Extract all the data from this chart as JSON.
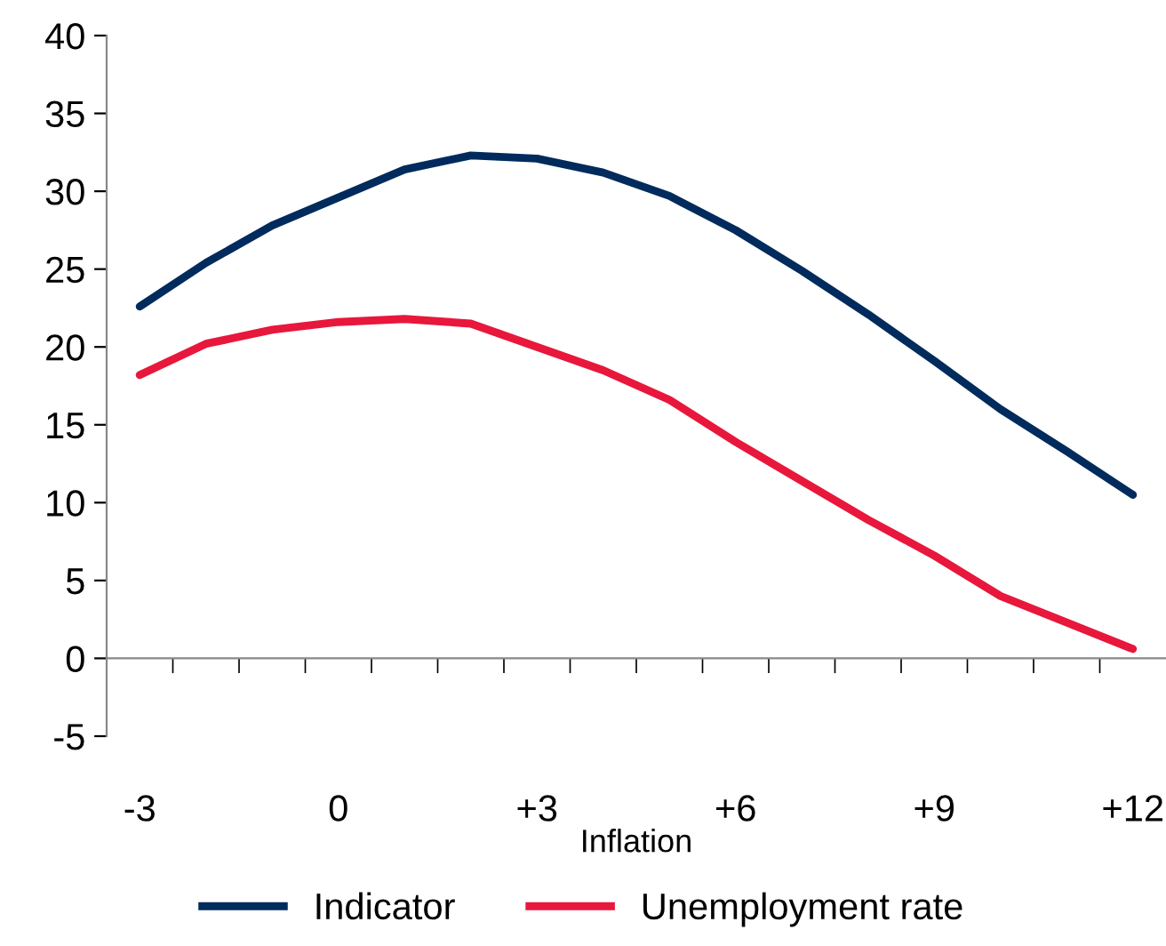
{
  "chart_data": {
    "type": "line",
    "xlabel": "Inflation",
    "categories": [
      "-3",
      null,
      null,
      "0",
      null,
      null,
      "+3",
      null,
      null,
      "+6",
      null,
      null,
      "+9",
      null,
      null,
      "+12"
    ],
    "series": [
      {
        "name": "Indicator",
        "color": "#002b5c",
        "values": [
          22.6,
          25.4,
          27.8,
          29.6,
          31.4,
          32.3,
          32.1,
          31.2,
          29.7,
          27.5,
          24.9,
          22.1,
          19.1,
          16.0,
          13.3,
          10.5
        ]
      },
      {
        "name": "Unemployment rate",
        "color": "#e8173c",
        "values": [
          18.2,
          20.2,
          21.1,
          21.6,
          21.8,
          21.5,
          20.0,
          18.5,
          16.6,
          13.9,
          11.4,
          8.9,
          6.6,
          4.0,
          2.3,
          0.6
        ]
      }
    ],
    "ylim": [
      -5,
      40
    ],
    "yticks": [
      -5,
      0,
      5,
      10,
      15,
      20,
      25,
      30,
      35,
      40
    ],
    "legend": "bottom",
    "marker": "none",
    "line_style": "solid"
  }
}
